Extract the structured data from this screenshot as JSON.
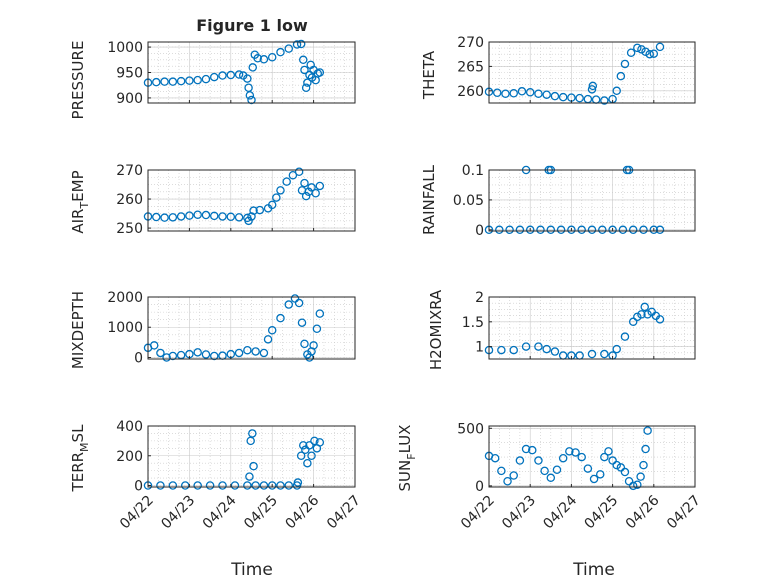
{
  "chart_data": [
    {
      "type": "scatter",
      "title": "Figure 1 low",
      "ylabel": "PRESSURE",
      "ylim": [
        890,
        1010
      ],
      "yticks": [
        900,
        950,
        1000
      ],
      "grid": true,
      "minor_grid": true,
      "x": [
        "04/22",
        "04/23",
        "04/24",
        "04/25",
        "04/26",
        "04/27"
      ],
      "xlim": [
        0,
        5
      ],
      "series": [
        {
          "color": "#0072BD",
          "points": [
            [
              0,
              930
            ],
            [
              0.2,
              931
            ],
            [
              0.4,
              932
            ],
            [
              0.6,
              932
            ],
            [
              0.8,
              933
            ],
            [
              1,
              934
            ],
            [
              1.2,
              935
            ],
            [
              1.4,
              937
            ],
            [
              1.6,
              941
            ],
            [
              1.8,
              944
            ],
            [
              2,
              945
            ],
            [
              2.2,
              946
            ],
            [
              2.3,
              944
            ],
            [
              2.4,
              938
            ],
            [
              2.43,
              920
            ],
            [
              2.46,
              905
            ],
            [
              2.5,
              896
            ],
            [
              2.53,
              960
            ],
            [
              2.58,
              985
            ],
            [
              2.65,
              978
            ],
            [
              2.8,
              976
            ],
            [
              3,
              980
            ],
            [
              3.2,
              990
            ],
            [
              3.4,
              997
            ],
            [
              3.6,
              1005
            ],
            [
              3.7,
              1006
            ],
            [
              3.75,
              975
            ],
            [
              3.78,
              955
            ],
            [
              3.82,
              920
            ],
            [
              3.85,
              930
            ],
            [
              3.9,
              945
            ],
            [
              3.93,
              965
            ],
            [
              3.96,
              940
            ],
            [
              4,
              955
            ],
            [
              4.05,
              935
            ],
            [
              4.1,
              948
            ],
            [
              4.15,
              950
            ]
          ]
        }
      ]
    },
    {
      "type": "scatter",
      "ylabel": "THETA",
      "ylim": [
        257.5,
        270
      ],
      "yticks": [
        260,
        265,
        270
      ],
      "grid": true,
      "minor_grid": true,
      "x": [
        "04/22",
        "04/23",
        "04/24",
        "04/25",
        "04/26",
        "04/27"
      ],
      "xlim": [
        0,
        5
      ],
      "series": [
        {
          "color": "#0072BD",
          "points": [
            [
              0,
              259.8
            ],
            [
              0.2,
              259.6
            ],
            [
              0.4,
              259.4
            ],
            [
              0.6,
              259.5
            ],
            [
              0.8,
              259.9
            ],
            [
              1,
              259.7
            ],
            [
              1.2,
              259.4
            ],
            [
              1.4,
              259.2
            ],
            [
              1.6,
              258.9
            ],
            [
              1.8,
              258.7
            ],
            [
              2,
              258.6
            ],
            [
              2.2,
              258.5
            ],
            [
              2.4,
              258.3
            ],
            [
              2.5,
              260.3
            ],
            [
              2.52,
              261
            ],
            [
              2.6,
              258.2
            ],
            [
              2.8,
              258
            ],
            [
              3,
              258.3
            ],
            [
              3.1,
              260
            ],
            [
              3.2,
              263
            ],
            [
              3.3,
              265.5
            ],
            [
              3.45,
              267.8
            ],
            [
              3.6,
              268.8
            ],
            [
              3.7,
              268.5
            ],
            [
              3.8,
              268
            ],
            [
              3.9,
              267.5
            ],
            [
              4,
              267.6
            ],
            [
              4.15,
              269
            ]
          ]
        }
      ]
    },
    {
      "type": "scatter",
      "ylabel": "AIR_TEMP",
      "ylabel_main": "AIR",
      "ylabel_sub": "T",
      "ylabel_rest": "EMP",
      "ylim": [
        249,
        270
      ],
      "yticks": [
        250,
        260,
        270
      ],
      "grid": true,
      "minor_grid": true,
      "x": [
        "04/22",
        "04/23",
        "04/24",
        "04/25",
        "04/26",
        "04/27"
      ],
      "xlim": [
        0,
        5
      ],
      "series": [
        {
          "color": "#0072BD",
          "points": [
            [
              0,
              254
            ],
            [
              0.2,
              253.8
            ],
            [
              0.4,
              253.6
            ],
            [
              0.6,
              253.7
            ],
            [
              0.8,
              254
            ],
            [
              1,
              254.3
            ],
            [
              1.2,
              254.6
            ],
            [
              1.4,
              254.5
            ],
            [
              1.6,
              254.2
            ],
            [
              1.8,
              254
            ],
            [
              2,
              253.9
            ],
            [
              2.2,
              253.7
            ],
            [
              2.4,
              253.5
            ],
            [
              2.43,
              252.5
            ],
            [
              2.5,
              254
            ],
            [
              2.55,
              256
            ],
            [
              2.7,
              256.2
            ],
            [
              2.9,
              256.8
            ],
            [
              3,
              258
            ],
            [
              3.1,
              260.5
            ],
            [
              3.2,
              263
            ],
            [
              3.35,
              266
            ],
            [
              3.5,
              268.2
            ],
            [
              3.65,
              269.4
            ],
            [
              3.72,
              263
            ],
            [
              3.78,
              265.5
            ],
            [
              3.82,
              261
            ],
            [
              3.88,
              262.5
            ],
            [
              3.95,
              264
            ],
            [
              4.05,
              262
            ],
            [
              4.15,
              264.5
            ]
          ]
        }
      ]
    },
    {
      "type": "scatter",
      "ylabel": "RAINFALL",
      "ylim": [
        -0.002,
        0.1
      ],
      "yticks": [
        0,
        0.05,
        0.1
      ],
      "ytick_labels": [
        "0",
        "0.05",
        "0.1"
      ],
      "grid": true,
      "minor_grid": true,
      "x": [
        "04/22",
        "04/23",
        "04/24",
        "04/25",
        "04/26",
        "04/27"
      ],
      "xlim": [
        0,
        5
      ],
      "series": [
        {
          "color": "#0072BD",
          "points": [
            [
              0,
              0
            ],
            [
              0.25,
              0
            ],
            [
              0.5,
              0
            ],
            [
              0.75,
              0
            ],
            [
              1,
              0
            ],
            [
              1.25,
              0
            ],
            [
              1.5,
              0
            ],
            [
              1.75,
              0
            ],
            [
              2,
              0
            ],
            [
              2.25,
              0
            ],
            [
              2.5,
              0
            ],
            [
              2.75,
              0
            ],
            [
              3,
              0
            ],
            [
              3.25,
              0
            ],
            [
              3.5,
              0
            ],
            [
              3.75,
              0
            ],
            [
              4,
              0
            ],
            [
              4.15,
              0
            ],
            [
              0.9,
              0.1
            ],
            [
              1.45,
              0.1
            ],
            [
              1.5,
              0.1
            ],
            [
              3.35,
              0.1
            ],
            [
              3.4,
              0.1
            ]
          ]
        }
      ]
    },
    {
      "type": "scatter",
      "ylabel": "MIXDEPTH",
      "ylim": [
        -50,
        2000
      ],
      "yticks": [
        0,
        1000,
        2000
      ],
      "grid": true,
      "minor_grid": true,
      "x": [
        "04/22",
        "04/23",
        "04/24",
        "04/25",
        "04/26",
        "04/27"
      ],
      "xlim": [
        0,
        5
      ],
      "series": [
        {
          "color": "#0072BD",
          "points": [
            [
              0,
              320
            ],
            [
              0.15,
              400
            ],
            [
              0.3,
              150
            ],
            [
              0.45,
              0
            ],
            [
              0.6,
              50
            ],
            [
              0.8,
              80
            ],
            [
              1,
              110
            ],
            [
              1.2,
              170
            ],
            [
              1.4,
              100
            ],
            [
              1.6,
              50
            ],
            [
              1.8,
              60
            ],
            [
              2,
              110
            ],
            [
              2.2,
              150
            ],
            [
              2.4,
              240
            ],
            [
              2.6,
              200
            ],
            [
              2.8,
              150
            ],
            [
              2.9,
              600
            ],
            [
              3,
              900
            ],
            [
              3.2,
              1300
            ],
            [
              3.4,
              1750
            ],
            [
              3.55,
              1950
            ],
            [
              3.65,
              1800
            ],
            [
              3.72,
              1150
            ],
            [
              3.78,
              450
            ],
            [
              3.85,
              100
            ],
            [
              3.9,
              0
            ],
            [
              3.95,
              200
            ],
            [
              4,
              400
            ],
            [
              4.08,
              950
            ],
            [
              4.15,
              1450
            ]
          ]
        }
      ]
    },
    {
      "type": "scatter",
      "ylabel": "H2OMIXRA",
      "ylim": [
        0.75,
        2
      ],
      "yticks": [
        1,
        1.5,
        2
      ],
      "ytick_labels": [
        "1",
        "1.5",
        "2"
      ],
      "grid": true,
      "minor_grid": true,
      "x": [
        "04/22",
        "04/23",
        "04/24",
        "04/25",
        "04/26",
        "04/27"
      ],
      "xlim": [
        0,
        5
      ],
      "series": [
        {
          "color": "#0072BD",
          "points": [
            [
              0,
              0.93
            ],
            [
              0.3,
              0.93
            ],
            [
              0.6,
              0.93
            ],
            [
              0.9,
              1.0
            ],
            [
              1.2,
              1.0
            ],
            [
              1.4,
              0.95
            ],
            [
              1.6,
              0.9
            ],
            [
              1.8,
              0.82
            ],
            [
              2,
              0.82
            ],
            [
              2.2,
              0.82
            ],
            [
              2.5,
              0.85
            ],
            [
              2.8,
              0.85
            ],
            [
              3,
              0.82
            ],
            [
              3.1,
              0.95
            ],
            [
              3.3,
              1.2
            ],
            [
              3.5,
              1.5
            ],
            [
              3.6,
              1.6
            ],
            [
              3.7,
              1.65
            ],
            [
              3.78,
              1.8
            ],
            [
              3.85,
              1.65
            ],
            [
              3.95,
              1.7
            ],
            [
              4.05,
              1.62
            ],
            [
              4.15,
              1.55
            ]
          ]
        }
      ]
    },
    {
      "type": "scatter",
      "ylabel": "TERR_MSL",
      "ylabel_main": "TERR",
      "ylabel_sub": "M",
      "ylabel_rest": "SL",
      "ylim": [
        -10,
        400
      ],
      "yticks": [
        0,
        200,
        400
      ],
      "grid": true,
      "minor_grid": true,
      "x": [
        "04/22",
        "04/23",
        "04/24",
        "04/25",
        "04/26",
        "04/27"
      ],
      "xlim": [
        0,
        5
      ],
      "xlabel": "Time",
      "series": [
        {
          "color": "#0072BD",
          "points": [
            [
              0,
              0
            ],
            [
              0.3,
              0
            ],
            [
              0.6,
              0
            ],
            [
              0.9,
              0
            ],
            [
              1.2,
              0
            ],
            [
              1.5,
              0
            ],
            [
              1.8,
              0
            ],
            [
              2.1,
              0
            ],
            [
              2.4,
              0
            ],
            [
              2.45,
              60
            ],
            [
              2.48,
              300
            ],
            [
              2.52,
              350
            ],
            [
              2.55,
              130
            ],
            [
              2.6,
              0
            ],
            [
              2.8,
              0
            ],
            [
              3,
              0
            ],
            [
              3.2,
              0
            ],
            [
              3.4,
              0
            ],
            [
              3.6,
              0
            ],
            [
              3.62,
              20
            ],
            [
              3.7,
              200
            ],
            [
              3.75,
              270
            ],
            [
              3.8,
              240
            ],
            [
              3.85,
              150
            ],
            [
              3.9,
              270
            ],
            [
              3.95,
              200
            ],
            [
              4.02,
              300
            ],
            [
              4.08,
              250
            ],
            [
              4.15,
              290
            ]
          ]
        }
      ]
    },
    {
      "type": "scatter",
      "ylabel": "SUN_FLUX",
      "ylabel_main": "SUN",
      "ylabel_sub": "F",
      "ylabel_rest": "LUX",
      "ylim": [
        -10,
        520
      ],
      "yticks": [
        0,
        500
      ],
      "grid": true,
      "minor_grid": true,
      "x": [
        "04/22",
        "04/23",
        "04/24",
        "04/25",
        "04/26",
        "04/27"
      ],
      "xlim": [
        0,
        5
      ],
      "xlabel": "Time",
      "series": [
        {
          "color": "#0072BD",
          "points": [
            [
              0,
              260
            ],
            [
              0.15,
              240
            ],
            [
              0.3,
              130
            ],
            [
              0.45,
              40
            ],
            [
              0.6,
              90
            ],
            [
              0.75,
              220
            ],
            [
              0.9,
              320
            ],
            [
              1.05,
              310
            ],
            [
              1.2,
              220
            ],
            [
              1.35,
              130
            ],
            [
              1.5,
              70
            ],
            [
              1.65,
              140
            ],
            [
              1.8,
              240
            ],
            [
              1.95,
              300
            ],
            [
              2.1,
              290
            ],
            [
              2.25,
              250
            ],
            [
              2.4,
              150
            ],
            [
              2.55,
              60
            ],
            [
              2.7,
              100
            ],
            [
              2.8,
              250
            ],
            [
              2.9,
              300
            ],
            [
              3,
              220
            ],
            [
              3.1,
              180
            ],
            [
              3.2,
              160
            ],
            [
              3.3,
              120
            ],
            [
              3.4,
              40
            ],
            [
              3.5,
              0
            ],
            [
              3.6,
              10
            ],
            [
              3.68,
              80
            ],
            [
              3.75,
              180
            ],
            [
              3.8,
              320
            ],
            [
              3.85,
              480
            ]
          ]
        }
      ]
    }
  ]
}
